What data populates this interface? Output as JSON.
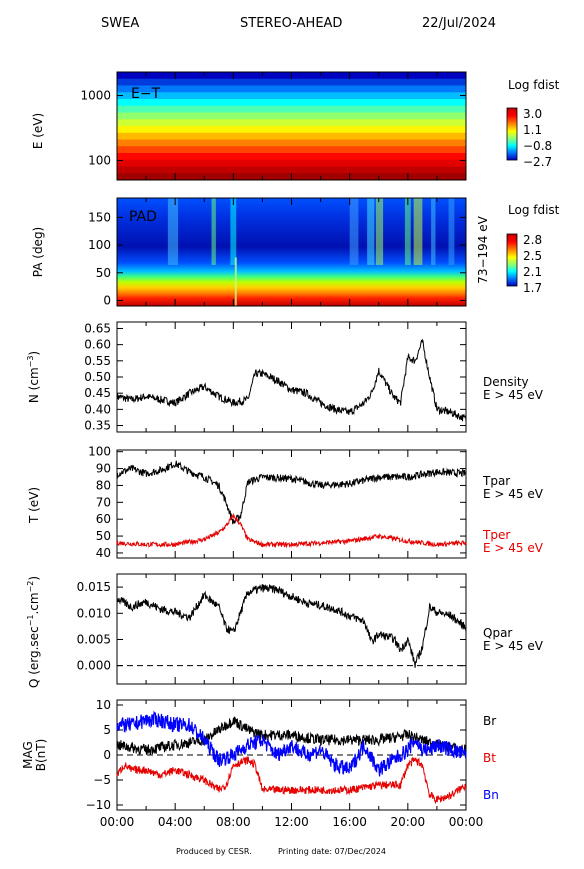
{
  "header": {
    "instrument": "SWEA",
    "spacecraft": "STEREO-AHEAD",
    "date": "22/Jul/2024"
  },
  "footer": {
    "produced_by": "Produced by CESR.",
    "printing_date": "Printing date: 07/Dec/2024"
  },
  "time_axis": {
    "ticks": [
      "00:00",
      "04:00",
      "08:00",
      "12:00",
      "16:00",
      "20:00",
      "00:00"
    ],
    "range_hours": [
      0,
      24
    ]
  },
  "colors": {
    "black": "#000000",
    "red": "#e60000",
    "blue": "#0000ff",
    "colormap": [
      "#800000",
      "#ff0000",
      "#ff8000",
      "#ffff00",
      "#80ff80",
      "#00ffff",
      "#0080ff",
      "#0000ff",
      "#000080"
    ]
  },
  "chart_data": [
    {
      "type": "heatmap",
      "name": "energy-time",
      "panel_label": "E−T",
      "ylabel": "E (eV)",
      "yscale": "log",
      "ylim": [
        50,
        2300
      ],
      "yticks": [
        "1000",
        "100"
      ],
      "yticks_values": [
        1000,
        100
      ],
      "colorbar": {
        "title": "Log fdist",
        "labels": [
          "3.0",
          "1.1",
          "−0.8",
          "−2.7"
        ],
        "range": [
          -2.7,
          3.0
        ]
      },
      "rows_from_top": [
        -2.7,
        -2.3,
        -1.9,
        -1.5,
        -1.1,
        -0.7,
        -0.3,
        0.1,
        0.5,
        0.9,
        1.3,
        1.7,
        2.1,
        2.4,
        2.7,
        3.0
      ]
    },
    {
      "type": "heatmap",
      "name": "pitch-angle",
      "panel_label": "PAD",
      "ylabel": "PA (deg)",
      "right_label": "73−194 eV",
      "ylim": [
        -10,
        185
      ],
      "yticks": [
        "150",
        "100",
        "50",
        "0"
      ],
      "yticks_values": [
        150,
        100,
        50,
        0
      ],
      "colorbar": {
        "title": "Log fdist",
        "labels": [
          "2.8",
          "2.5",
          "2.1",
          "1.7"
        ],
        "range": [
          1.7,
          2.8
        ]
      }
    },
    {
      "type": "line",
      "name": "density",
      "ylabel_main": "N (cm",
      "ylabel_exp": "−3",
      "ylabel_close": ")",
      "ylim": [
        0.33,
        0.67
      ],
      "yticks": [
        "0.65",
        "0.60",
        "0.55",
        "0.50",
        "0.45",
        "0.40",
        "0.35"
      ],
      "yticks_values": [
        0.65,
        0.6,
        0.55,
        0.5,
        0.45,
        0.4,
        0.35
      ],
      "series": [
        {
          "name": "Density",
          "subtitle": "E > 45 eV",
          "x": [
            0,
            1,
            2,
            3,
            4,
            5,
            6,
            7,
            8,
            9,
            9.5,
            10,
            11,
            12,
            13,
            14,
            15,
            16,
            17,
            17.5,
            18,
            19,
            19.5,
            20,
            20.5,
            21,
            21.5,
            22,
            23,
            24
          ],
          "y": [
            0.44,
            0.43,
            0.44,
            0.43,
            0.42,
            0.45,
            0.47,
            0.44,
            0.42,
            0.43,
            0.51,
            0.51,
            0.49,
            0.46,
            0.45,
            0.42,
            0.4,
            0.39,
            0.42,
            0.45,
            0.52,
            0.44,
            0.42,
            0.56,
            0.55,
            0.61,
            0.5,
            0.4,
            0.39,
            0.37
          ]
        }
      ]
    },
    {
      "type": "line",
      "name": "temperature",
      "ylabel": "T (eV)",
      "ylim": [
        37,
        101
      ],
      "yticks": [
        "100",
        "90",
        "80",
        "70",
        "60",
        "50",
        "40"
      ],
      "yticks_values": [
        100,
        90,
        80,
        70,
        60,
        50,
        40
      ],
      "series": [
        {
          "name": "Tpar",
          "subtitle": "E > 45 eV",
          "color": "#000000",
          "x": [
            0,
            1,
            2,
            3,
            4,
            5,
            6,
            7,
            7.5,
            8,
            8.5,
            9,
            10,
            12,
            14,
            16,
            18,
            20,
            22,
            24
          ],
          "y": [
            87,
            90,
            87,
            89,
            93,
            88,
            85,
            80,
            70,
            58,
            62,
            82,
            85,
            84,
            80,
            81,
            85,
            85,
            88,
            87
          ]
        },
        {
          "name": "Tper",
          "subtitle": "E > 45 eV",
          "color": "#e60000",
          "x": [
            0,
            2,
            4,
            6,
            7,
            7.5,
            8,
            8.5,
            9,
            10,
            12,
            14,
            16,
            18,
            20,
            22,
            24
          ],
          "y": [
            46,
            45,
            45,
            48,
            52,
            56,
            62,
            57,
            48,
            45,
            45,
            46,
            47,
            50,
            47,
            45,
            46
          ]
        }
      ]
    },
    {
      "type": "line",
      "name": "heat-flux",
      "ylabel_main": "Q (erg.sec",
      "ylabel_exp1": "−1",
      "ylabel_mid": ".cm",
      "ylabel_exp2": "−2",
      "ylabel_close": ")",
      "ylim": [
        -0.0035,
        0.0175
      ],
      "yticks": [
        "0.015",
        "0.010",
        "0.005",
        "0.000"
      ],
      "yticks_values": [
        0.015,
        0.01,
        0.005,
        0.0
      ],
      "zero_line": true,
      "series": [
        {
          "name": "Qpar",
          "subtitle": "E > 45 eV",
          "x": [
            0,
            1,
            2,
            3,
            4,
            5,
            6,
            7,
            7.5,
            8,
            9,
            10,
            11,
            12,
            13,
            14,
            15,
            16,
            17,
            17.5,
            18,
            19,
            19.5,
            20,
            20.5,
            21,
            21.5,
            22,
            23,
            24
          ],
          "y": [
            0.0128,
            0.0112,
            0.0122,
            0.0108,
            0.0102,
            0.0092,
            0.0135,
            0.0112,
            0.0072,
            0.0063,
            0.014,
            0.0148,
            0.0145,
            0.0132,
            0.012,
            0.0115,
            0.0108,
            0.0095,
            0.0085,
            0.0045,
            0.006,
            0.0052,
            0.003,
            0.005,
            0.0002,
            0.0035,
            0.0112,
            0.0102,
            0.0095,
            0.0072
          ]
        }
      ]
    },
    {
      "type": "line",
      "name": "magnetic-field",
      "ylabel_top": "MAG",
      "ylabel_bottom": "B(nT)",
      "ylim": [
        -11,
        11
      ],
      "yticks": [
        "10",
        "5",
        "0",
        "−5",
        "−10"
      ],
      "yticks_values": [
        10,
        5,
        0,
        -5,
        -10
      ],
      "zero_line": true,
      "series": [
        {
          "name": "Br",
          "color": "#000000",
          "x": [
            0,
            2,
            4,
            6,
            7,
            8,
            9,
            10,
            12,
            14,
            16,
            18,
            20,
            22,
            24
          ],
          "y": [
            2,
            1,
            2,
            3,
            5,
            7,
            5,
            4,
            4,
            3,
            3,
            3,
            4,
            2,
            1
          ]
        },
        {
          "name": "Bt",
          "color": "#e60000",
          "x": [
            0,
            0.5,
            1,
            2,
            3,
            4,
            5,
            6,
            7,
            7.5,
            8,
            9,
            9.5,
            10,
            12,
            14,
            16,
            18,
            19.5,
            20,
            20.5,
            21,
            21.5,
            22,
            23,
            24
          ],
          "y": [
            -4,
            -2,
            -3,
            -3,
            -4,
            -3,
            -4,
            -5,
            -7,
            -6,
            -2,
            -1,
            -2,
            -7,
            -7,
            -7,
            -7,
            -6,
            -6,
            -2,
            -1,
            -2,
            -8,
            -9,
            -8,
            -6
          ]
        },
        {
          "name": "Bn",
          "color": "#0000ff",
          "x": [
            0,
            1,
            2,
            3,
            4,
            5,
            6,
            7,
            8,
            9,
            10,
            11,
            12,
            13,
            14,
            15,
            16,
            17,
            18,
            19,
            20,
            20.5,
            21,
            21.5,
            22,
            23,
            24
          ],
          "y": [
            6,
            6,
            7,
            7,
            6,
            6,
            3,
            -1,
            0,
            2,
            3,
            0,
            2,
            0,
            1,
            -2,
            -3,
            2,
            -3,
            -1,
            1,
            3,
            1,
            1,
            2,
            1,
            0
          ]
        }
      ]
    }
  ]
}
